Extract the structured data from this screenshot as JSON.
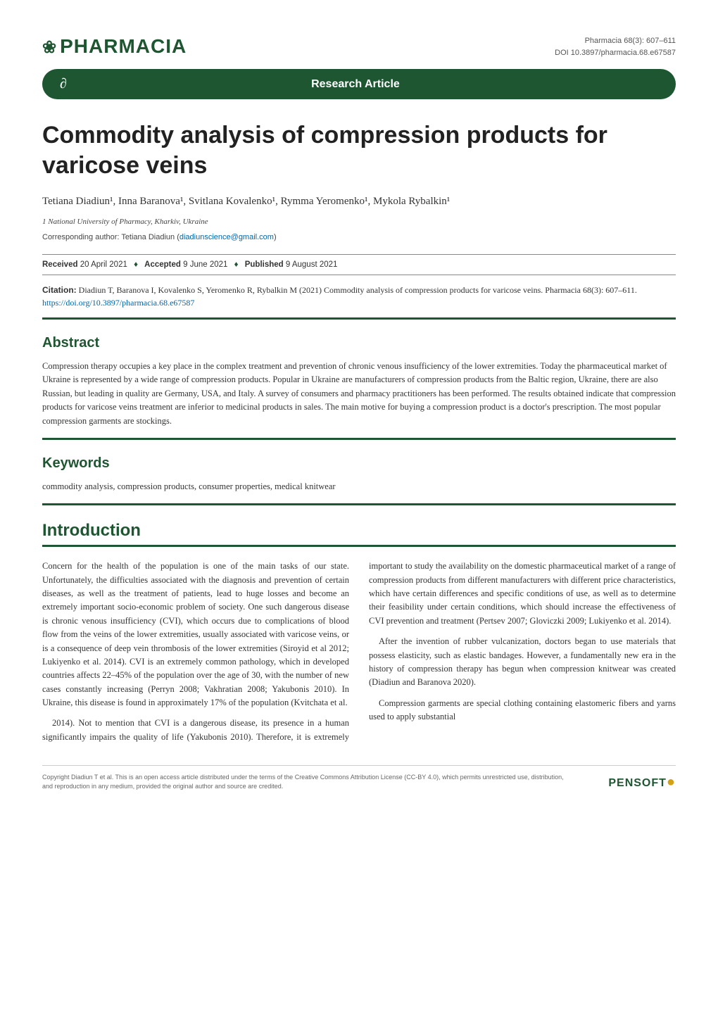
{
  "theme": {
    "brand_color": "#1e5631",
    "accent_color": "#d4a017",
    "link_color": "#0066aa",
    "text_color": "#333333",
    "background": "#ffffff",
    "rule_color": "#888888"
  },
  "header": {
    "logo_text": "PHARMACIA",
    "logo_glyph": "❀",
    "journal_ref": "Pharmacia 68(3): 607–611",
    "doi": "DOI 10.3897/pharmacia.68.e67587"
  },
  "banner": {
    "oa_glyph": "∂",
    "label": "Research Article"
  },
  "title": "Commodity analysis of compression products for varicose veins",
  "authors_line": "Tetiana Diadiun¹, Inna Baranova¹, Svitlana Kovalenko¹, Rymma Yeromenko¹, Mykola Rybalkin¹",
  "affiliation": "1  National University of Pharmacy, Kharkiv, Ukraine",
  "corresponding": {
    "label": "Corresponding author: Tetiana Diadiun (",
    "email": "diadiunscience@gmail.com",
    "close": ")"
  },
  "dates": {
    "received_label": "Received",
    "received": "20 April 2021",
    "accepted_label": "Accepted",
    "accepted": "9 June 2021",
    "published_label": "Published",
    "published": "9 August 2021",
    "diamond": "♦"
  },
  "citation": {
    "label": "Citation:",
    "text": " Diadiun T, Baranova I, Kovalenko S, Yeromenko R, Rybalkin M (2021) Commodity analysis of compression products for varicose veins. Pharmacia 68(3): 607–611. ",
    "doi": "https://doi.org/10.3897/pharmacia.68.e67587"
  },
  "abstract": {
    "heading": "Abstract",
    "body": "Compression therapy occupies a key place in the complex treatment and prevention of chronic venous insufficiency of the lower extremities. Today the pharmaceutical market of Ukraine is represented by a wide range of compression products. Popular in Ukraine are manufacturers of compression products from the Baltic region, Ukraine, there are also Russian, but leading in quality are Germany, USA, and Italy. A survey of consumers and pharmacy practitioners has been performed. The results obtained indicate that compression products for varicose veins treatment are inferior to medicinal products in sales. The main motive for buying a compression product is a doctor's prescription. The most popular compression garments are stockings."
  },
  "keywords": {
    "heading": "Keywords",
    "body": "commodity analysis, compression products, consumer properties, medical knitwear"
  },
  "introduction": {
    "heading": "Introduction",
    "p1": "Concern for the health of the population is one of the main tasks of our state. Unfortunately, the difficulties associated with the diagnosis and prevention of certain diseases, as well as the treatment of patients, lead to huge losses and become an extremely important socio-economic problem of society. One such dangerous disease is chronic venous insufficiency (CVI), which occurs due to complications of blood flow from the veins of the lower extremities, usually associated with varicose veins, or is a consequence of deep vein thrombosis of the lower extremities (Siroyid et al 2012; Lukiyenko et al. 2014). CVI is an extremely common pathology, which in developed countries affects 22–45% of the population over the age of 30, with the number of new cases constantly increasing (Perryn 2008; Vakhratian 2008; Yakubonis 2010). In Ukraine, this disease is found in approximately 17% of the population (Kvitchata et al.",
    "p2": "2014). Not to mention that CVI is a dangerous disease, its presence in a human significantly impairs the quality of life (Yakubonis 2010). Therefore, it is extremely important to study the availability on the domestic pharmaceutical market of a range of compression products from different manufacturers with different price characteristics, which have certain differences and specific conditions of use, as well as to determine their feasibility under certain conditions, which should increase the effectiveness of CVI prevention and treatment (Pertsev 2007; Gloviczki 2009; Lukiyenko et al. 2014).",
    "p3": "After the invention of rubber vulcanization, doctors began to use materials that possess elasticity, such as elastic bandages. However, a fundamentally new era in the history of compression therapy has begun when compression knitwear was created (Diadiun and Baranova 2020).",
    "p4": "Compression garments are special clothing containing elastomeric fibers and yarns used to apply substantial"
  },
  "footer": {
    "copyright": "Copyright Diadiun T et al. This is an open access article distributed under the terms of the Creative Commons Attribution License (CC-BY 4.0), which permits unrestricted use, distribution, and reproduction in any medium, provided the original author and source are credited.",
    "publisher": "PENSOFT",
    "publisher_dot": "●"
  }
}
